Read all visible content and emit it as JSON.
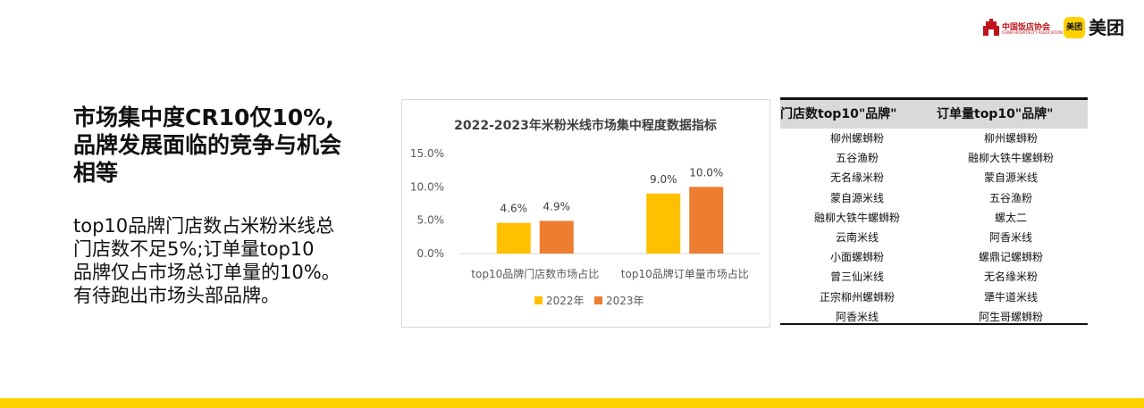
{
  "logos": {
    "association_name": "中国饭店协会",
    "association_sub": "CHINA HOSPITALITY ASSOCIATION",
    "meituan_badge": "美团",
    "meituan_word": "美团"
  },
  "colors": {
    "accent_yellow": "#ffd100",
    "series_2022": "#ffc000",
    "series_2023": "#ed7d31",
    "association_red": "#c0141c"
  },
  "headline": {
    "lines": [
      "市场集中度CR10仅10%,",
      "品牌发展面临的竞争与机会",
      "相等"
    ]
  },
  "body": {
    "lines": [
      "top10品牌门店数占米粉米线总",
      "门店数不足5%;订单量top10",
      "品牌仅占市场总订单量的10%。",
      "有待跑出市场头部品牌。"
    ]
  },
  "chart_data": {
    "type": "bar",
    "title": "2022-2023年米粉米线市场集中程度数据指标",
    "categories": [
      "top10品牌门店数市场占比",
      "top10品牌订单量市场占比"
    ],
    "series": [
      {
        "name": "2022年",
        "values": [
          4.6,
          9.0
        ],
        "labels": [
          "4.6%",
          "9.0%"
        ]
      },
      {
        "name": "2023年",
        "values": [
          4.9,
          10.0
        ],
        "labels": [
          "4.9%",
          "10.0%"
        ]
      }
    ],
    "ylim": [
      0,
      15
    ],
    "yticks": [
      0,
      5,
      10,
      15
    ],
    "ytick_labels": [
      "0.0%",
      "5.0%",
      "10.0%",
      "15.0%"
    ],
    "legend_position": "bottom",
    "grid": false
  },
  "table": {
    "headers": [
      "门店数top10\"品牌\"",
      "订单量top10\"品牌\""
    ],
    "rows": [
      [
        "柳州螺蛳粉",
        "柳州螺蛳粉"
      ],
      [
        "五谷渔粉",
        "融柳大铁牛螺蛳粉"
      ],
      [
        "无名缘米粉",
        "蒙自源米线"
      ],
      [
        "蒙自源米线",
        "五谷渔粉"
      ],
      [
        "融柳大铁牛螺蛳粉",
        "螺太二"
      ],
      [
        "云南米线",
        "阿香米线"
      ],
      [
        "小面螺蛳粉",
        "螺鼎记螺蛳粉"
      ],
      [
        "曾三仙米线",
        "无名缘米粉"
      ],
      [
        "正宗柳州螺蛳粉",
        "犟牛道米线"
      ],
      [
        "阿香米线",
        "阿生哥螺蛳粉"
      ]
    ]
  }
}
